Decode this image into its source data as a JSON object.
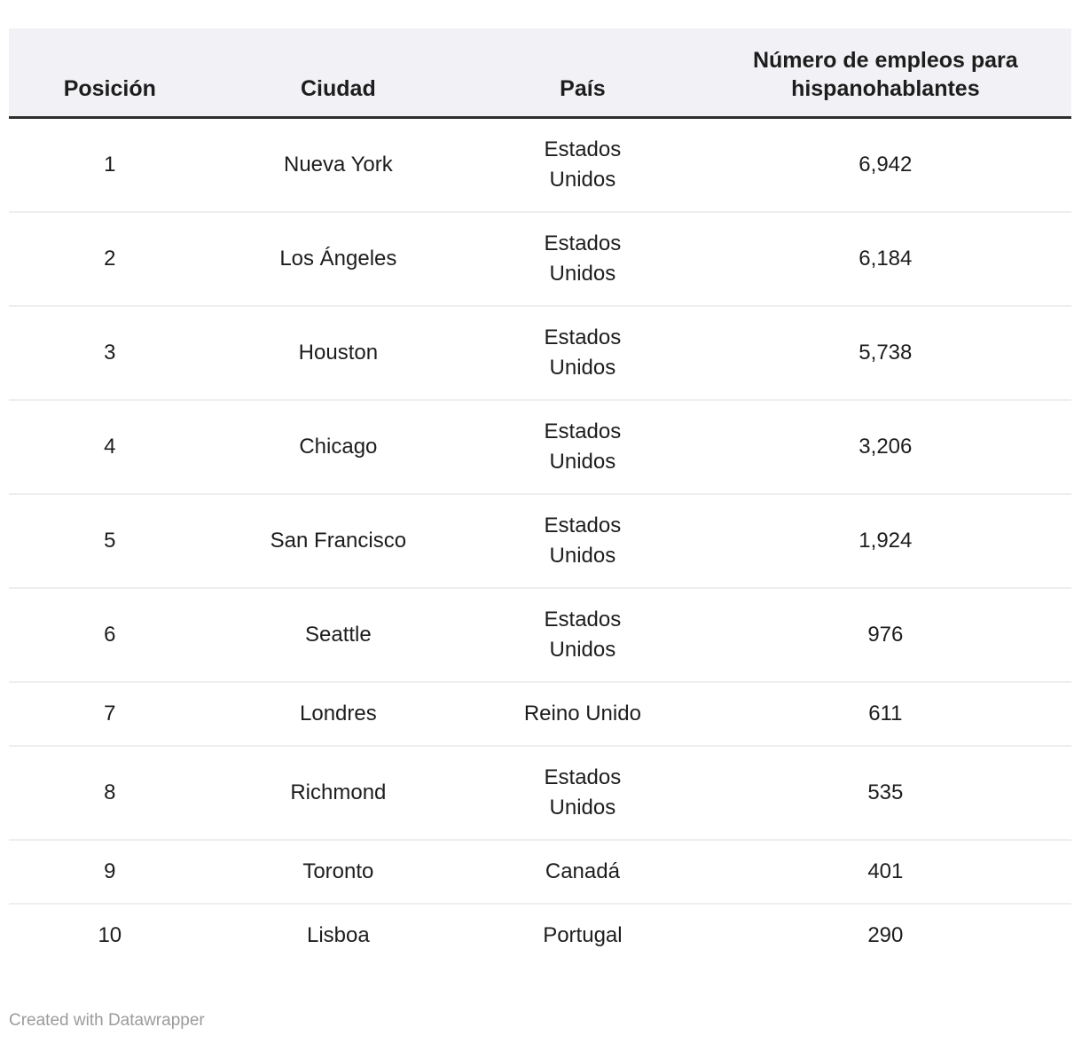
{
  "colors": {
    "header_bg": "#f2f1f5",
    "header_rule": "#2e2e2e",
    "row_divider": "#eeeeee",
    "text": "#1d1d1d",
    "credit_text": "#9b9b9b"
  },
  "table": {
    "columns": [
      {
        "label": "Posición"
      },
      {
        "label": "Ciudad"
      },
      {
        "label": "País"
      },
      {
        "label": "Número de empleos para hispanohablantes"
      }
    ],
    "rows": [
      {
        "position": "1",
        "city": "Nueva York",
        "country": "Estados\nUnidos",
        "jobs": "6,942"
      },
      {
        "position": "2",
        "city": "Los Ángeles",
        "country": "Estados\nUnidos",
        "jobs": "6,184"
      },
      {
        "position": "3",
        "city": "Houston",
        "country": "Estados\nUnidos",
        "jobs": "5,738"
      },
      {
        "position": "4",
        "city": "Chicago",
        "country": "Estados\nUnidos",
        "jobs": "3,206"
      },
      {
        "position": "5",
        "city": "San Francisco",
        "country": "Estados\nUnidos",
        "jobs": "1,924"
      },
      {
        "position": "6",
        "city": "Seattle",
        "country": "Estados\nUnidos",
        "jobs": "976"
      },
      {
        "position": "7",
        "city": "Londres",
        "country": "Reino Unido",
        "jobs": "611"
      },
      {
        "position": "8",
        "city": "Richmond",
        "country": "Estados\nUnidos",
        "jobs": "535"
      },
      {
        "position": "9",
        "city": "Toronto",
        "country": "Canadá",
        "jobs": "401"
      },
      {
        "position": "10",
        "city": "Lisboa",
        "country": "Portugal",
        "jobs": "290"
      }
    ]
  },
  "footer": {
    "credit": "Created with Datawrapper"
  },
  "chart_data": {
    "type": "table",
    "title": "",
    "columns": [
      "Posición",
      "Ciudad",
      "País",
      "Número de empleos para hispanohablantes"
    ],
    "rows": [
      [
        1,
        "Nueva York",
        "Estados Unidos",
        6942
      ],
      [
        2,
        "Los Ángeles",
        "Estados Unidos",
        6184
      ],
      [
        3,
        "Houston",
        "Estados Unidos",
        5738
      ],
      [
        4,
        "Chicago",
        "Estados Unidos",
        3206
      ],
      [
        5,
        "San Francisco",
        "Estados Unidos",
        1924
      ],
      [
        6,
        "Seattle",
        "Estados Unidos",
        976
      ],
      [
        7,
        "Londres",
        "Reino Unido",
        611
      ],
      [
        8,
        "Richmond",
        "Estados Unidos",
        535
      ],
      [
        9,
        "Toronto",
        "Canadá",
        401
      ],
      [
        10,
        "Lisboa",
        "Portugal",
        290
      ]
    ]
  }
}
